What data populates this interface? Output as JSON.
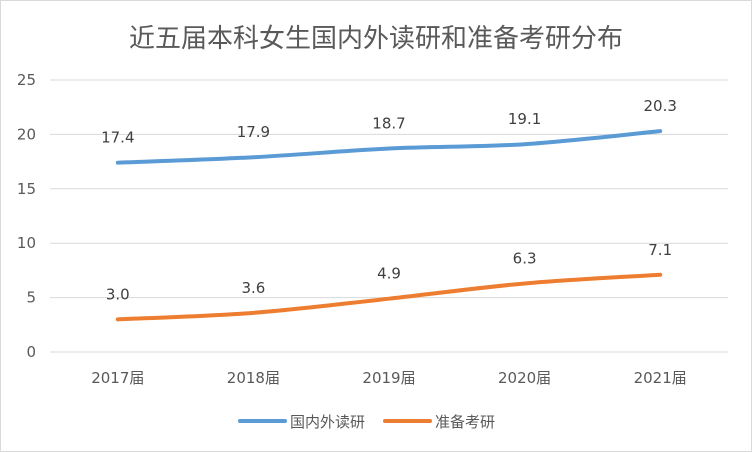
{
  "chart_data": {
    "type": "line",
    "title": "近五届本科女生国内外读研和准备考研分布",
    "categories": [
      "2017届",
      "2018届",
      "2019届",
      "2020届",
      "2021届"
    ],
    "series": [
      {
        "name": "国内外读研",
        "values": [
          17.4,
          17.9,
          18.7,
          19.1,
          20.3
        ],
        "labels": [
          "17.4",
          "17.9",
          "18.7",
          "19.1",
          "20.3"
        ],
        "color": "#5b9bd5"
      },
      {
        "name": "准备考研",
        "values": [
          3.0,
          3.6,
          4.9,
          6.3,
          7.1
        ],
        "labels": [
          "3.0",
          "3.6",
          "4.9",
          "6.3",
          "7.1"
        ],
        "color": "#ed7d31"
      }
    ],
    "ylim": [
      0,
      25
    ],
    "yticks": [
      "0",
      "5",
      "10",
      "15",
      "20",
      "25"
    ],
    "grid": true,
    "smooth": true,
    "legend": "bottom"
  }
}
